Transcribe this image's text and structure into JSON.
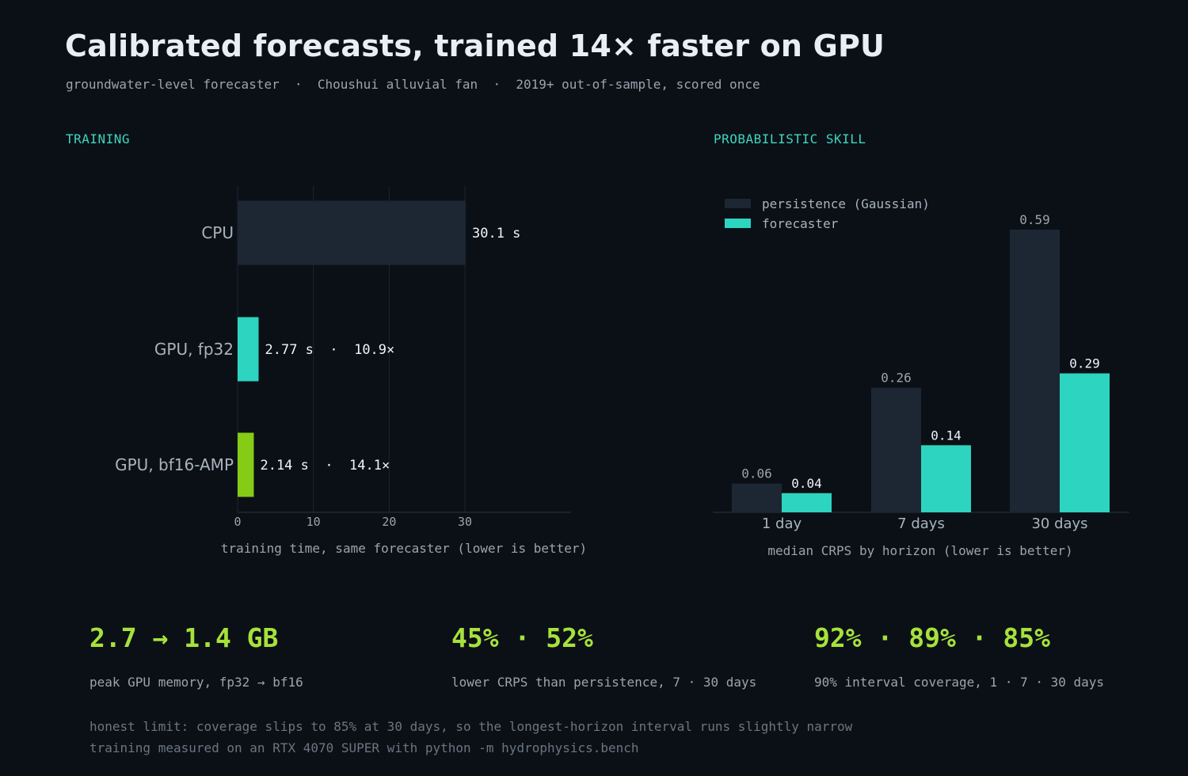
{
  "header": {
    "title": "Calibrated forecasts, trained 14× faster on GPU",
    "subtitle": "groundwater-level forecaster  ·  Choushui alluvial fan  ·  2019+ out-of-sample, scored once"
  },
  "sections": {
    "training": "TRAINING",
    "skill": "PROBABILISTIC SKILL"
  },
  "colors": {
    "background": "#0b1017",
    "cpu_bar": "#1c2733",
    "gpu_fp32": "#2dd4bf",
    "gpu_bf16": "#84cc16",
    "persistence": "#1c2733",
    "forecaster": "#2dd4bf",
    "stat_accent": "#a6e23b",
    "section_accent": "#3fd6bf"
  },
  "chart_data": [
    {
      "type": "bar",
      "orientation": "horizontal",
      "categories": [
        "CPU",
        "GPU, fp32",
        "GPU, bf16-AMP"
      ],
      "values": [
        30.1,
        2.77,
        2.14
      ],
      "data_labels": [
        "30.1 s",
        "2.77 s  ·  10.9×",
        "2.14 s  ·  14.1×"
      ],
      "xticks": [
        0,
        10,
        20,
        30
      ],
      "xlim": [
        0,
        44
      ],
      "xlabel": "training time, same forecaster (lower is better)",
      "grid": "vertical"
    },
    {
      "type": "bar",
      "orientation": "vertical",
      "categories": [
        "1 day",
        "7 days",
        "30 days"
      ],
      "series": [
        {
          "name": "persistence (Gaussian)",
          "values": [
            0.06,
            0.26,
            0.59
          ]
        },
        {
          "name": "forecaster",
          "values": [
            0.04,
            0.14,
            0.29
          ]
        }
      ],
      "ylim": [
        0,
        0.62
      ],
      "xlabel": "median CRPS by horizon (lower is better)",
      "legend": "top-left",
      "grid": false
    }
  ],
  "stats": [
    {
      "value": "2.7 → 1.4 GB",
      "label": "peak GPU memory, fp32 → bf16"
    },
    {
      "value": "45% · 52%",
      "label": "lower CRPS than persistence, 7 · 30 days"
    },
    {
      "value": "92% · 89% · 85%",
      "label": "90% interval coverage, 1 · 7 · 30 days"
    }
  ],
  "footnotes": [
    "honest limit: coverage slips to 85% at 30 days, so the longest-horizon interval runs slightly narrow",
    "training measured on an RTX 4070 SUPER with python -m hydrophysics.bench"
  ]
}
